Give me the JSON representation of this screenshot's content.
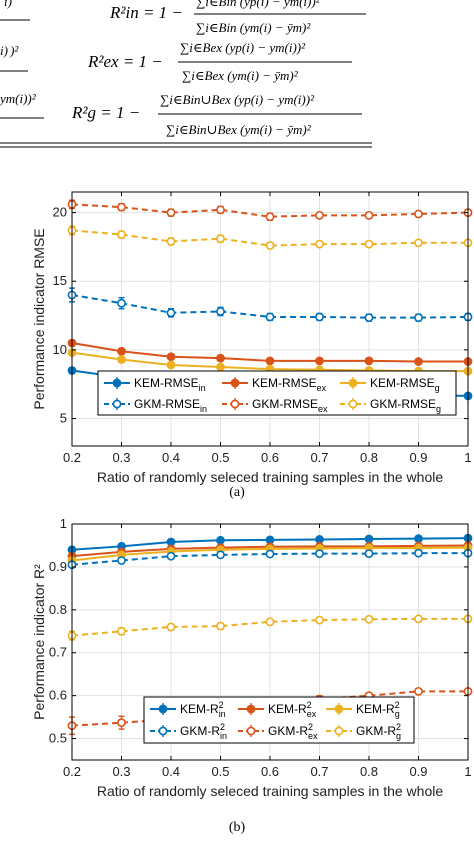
{
  "equations": {
    "r2_in_lhs": "R²in = 1 −",
    "r2_in_num": "∑i∈Bin (yp(i) − ym(i))²",
    "r2_in_den": "∑i∈Bin (ym(i) − ȳm)²",
    "r2_ex_lhs": "R²ex = 1 −",
    "r2_ex_num": "∑i∈Bex (yp(i) − ym(i))²",
    "r2_ex_den": "∑i∈Bex (ym(i) − ȳm)²",
    "r2_g_lhs": "R²g = 1 −",
    "r2_g_num": "∑i∈Bin∪Bex (yp(i) − ym(i))²",
    "r2_g_den": "∑i∈Bin∪Bex (ym(i) − ȳm)²",
    "left_fragments": [
      "i)",
      "i) )²",
      "ym(i))²"
    ]
  },
  "captions": {
    "a": "(a)",
    "b": "(b)"
  },
  "chart_data": [
    {
      "type": "line",
      "xlabel": "Ratio of randomly seleced training samples in the whole",
      "ylabel": "Performance indicator RMSE",
      "xlim": [
        0.2,
        1
      ],
      "ylim": [
        3,
        21.5
      ],
      "xticks": [
        0.2,
        0.3,
        0.4,
        0.5,
        0.6,
        0.7,
        0.8,
        0.9,
        1
      ],
      "xtick_labels": [
        "0.2",
        "0.3",
        "0.4",
        "0.5",
        "0.6",
        "0.7",
        "0.8",
        "0.9",
        "1"
      ],
      "yticks": [
        5,
        10,
        15,
        20
      ],
      "ytick_labels": [
        "5",
        "10",
        "15",
        "20"
      ],
      "grid": true,
      "legend_placement": "bottom, inside, two rows",
      "x": [
        0.2,
        0.3,
        0.4,
        0.5,
        0.6,
        0.7,
        0.8,
        0.9,
        1.0
      ],
      "series": [
        {
          "name": "KEM-RMSE",
          "sub": "in",
          "sup": "",
          "color": "#0072BD",
          "style": "solid",
          "marker": "filled",
          "values": [
            8.5,
            8.0,
            7.4,
            7.1,
            6.9,
            6.85,
            6.75,
            6.7,
            6.65
          ],
          "err": [
            0.2,
            0.2,
            0.15,
            0.15,
            0.15,
            0.15,
            0.15,
            0.15,
            0.15
          ]
        },
        {
          "name": "KEM-RMSE",
          "sub": "ex",
          "sup": "",
          "color": "#D95319",
          "style": "solid",
          "marker": "filled",
          "values": [
            10.5,
            9.9,
            9.5,
            9.4,
            9.2,
            9.2,
            9.2,
            9.15,
            9.15
          ],
          "err": [
            0.2,
            0.2,
            0.15,
            0.15,
            0.15,
            0.15,
            0.15,
            0.15,
            0.15
          ]
        },
        {
          "name": "KEM-RMSE",
          "sub": "g",
          "sup": "",
          "color": "#EDB120",
          "style": "solid",
          "marker": "filled",
          "values": [
            9.8,
            9.3,
            8.9,
            8.75,
            8.6,
            8.55,
            8.5,
            8.45,
            8.45
          ],
          "err": [
            0.2,
            0.2,
            0.15,
            0.15,
            0.15,
            0.15,
            0.15,
            0.15,
            0.15
          ]
        },
        {
          "name": "GKM-RMSE",
          "sub": "in",
          "sup": "",
          "color": "#0072BD",
          "style": "dashed",
          "marker": "open",
          "values": [
            14.0,
            13.4,
            12.7,
            12.8,
            12.4,
            12.4,
            12.35,
            12.35,
            12.4
          ],
          "err": [
            0.5,
            0.4,
            0.3,
            0.3,
            0.25,
            0.25,
            0.25,
            0.25,
            0.25
          ]
        },
        {
          "name": "GKM-RMSE",
          "sub": "ex",
          "sup": "",
          "color": "#D95319",
          "style": "dashed",
          "marker": "open",
          "values": [
            20.6,
            20.4,
            20.0,
            20.2,
            19.7,
            19.8,
            19.8,
            19.9,
            20.0
          ],
          "err": [
            0.3,
            0.25,
            0.25,
            0.25,
            0.25,
            0.2,
            0.2,
            0.2,
            0.2
          ]
        },
        {
          "name": "GKM-RMSE",
          "sub": "g",
          "sup": "",
          "color": "#EDB120",
          "style": "dashed",
          "marker": "open",
          "values": [
            18.7,
            18.4,
            17.9,
            18.1,
            17.6,
            17.7,
            17.7,
            17.8,
            17.8
          ],
          "err": [
            0.3,
            0.25,
            0.25,
            0.25,
            0.2,
            0.2,
            0.2,
            0.2,
            0.2
          ]
        }
      ]
    },
    {
      "type": "line",
      "xlabel": "Ratio of randomly seleced training samples in the whole",
      "ylabel": "Performance indicator R²",
      "xlim": [
        0.2,
        1
      ],
      "ylim": [
        0.45,
        1.0
      ],
      "xticks": [
        0.2,
        0.3,
        0.4,
        0.5,
        0.6,
        0.7,
        0.8,
        0.9,
        1
      ],
      "xtick_labels": [
        "0.2",
        "0.3",
        "0.4",
        "0.5",
        "0.6",
        "0.7",
        "0.8",
        "0.9",
        "1"
      ],
      "yticks": [
        0.5,
        0.6,
        0.7,
        0.8,
        0.9,
        1
      ],
      "ytick_labels": [
        "0.5",
        "0.6",
        "0.7",
        "0.8",
        "0.9",
        "1"
      ],
      "grid": true,
      "legend_placement": "bottom, inside, two rows",
      "x": [
        0.2,
        0.3,
        0.4,
        0.5,
        0.6,
        0.7,
        0.8,
        0.9,
        1.0
      ],
      "series": [
        {
          "name": "KEM-R",
          "sub": "in",
          "sup": "2",
          "color": "#0072BD",
          "style": "solid",
          "marker": "filled",
          "values": [
            0.94,
            0.948,
            0.958,
            0.962,
            0.963,
            0.964,
            0.965,
            0.966,
            0.967
          ],
          "err": [
            0.004,
            0.004,
            0.003,
            0.003,
            0.003,
            0.003,
            0.003,
            0.003,
            0.003
          ]
        },
        {
          "name": "KEM-R",
          "sub": "ex",
          "sup": "2",
          "color": "#D95319",
          "style": "solid",
          "marker": "filled",
          "values": [
            0.925,
            0.935,
            0.942,
            0.945,
            0.947,
            0.948,
            0.948,
            0.949,
            0.95
          ],
          "err": [
            0.004,
            0.004,
            0.003,
            0.003,
            0.003,
            0.003,
            0.003,
            0.003,
            0.003
          ]
        },
        {
          "name": "KEM-R",
          "sub": "g",
          "sup": "2",
          "color": "#EDB120",
          "style": "solid",
          "marker": "filled",
          "values": [
            0.915,
            0.928,
            0.936,
            0.94,
            0.942,
            0.943,
            0.944,
            0.944,
            0.945
          ],
          "err": [
            0.004,
            0.004,
            0.003,
            0.003,
            0.003,
            0.003,
            0.003,
            0.003,
            0.003
          ]
        },
        {
          "name": "GKM-R",
          "sub": "in",
          "sup": "2",
          "color": "#0072BD",
          "style": "dashed",
          "marker": "open",
          "values": [
            0.905,
            0.915,
            0.925,
            0.928,
            0.93,
            0.931,
            0.931,
            0.932,
            0.932
          ],
          "err": [
            0.005,
            0.004,
            0.004,
            0.004,
            0.003,
            0.003,
            0.003,
            0.003,
            0.003
          ]
        },
        {
          "name": "GKM-R",
          "sub": "ex",
          "sup": "2",
          "color": "#D95319",
          "style": "dashed",
          "marker": "open",
          "values": [
            0.53,
            0.537,
            0.545,
            0.547,
            0.58,
            0.592,
            0.6,
            0.61,
            0.61
          ],
          "err": [
            0.02,
            0.015,
            0.015,
            0.015,
            0.01,
            0.008,
            0.006,
            0.006,
            0.006
          ]
        },
        {
          "name": "GKM-R",
          "sub": "g",
          "sup": "2",
          "color": "#EDB120",
          "style": "dashed",
          "marker": "open",
          "values": [
            0.74,
            0.75,
            0.76,
            0.762,
            0.772,
            0.776,
            0.778,
            0.779,
            0.779
          ],
          "err": [
            0.01,
            0.008,
            0.007,
            0.007,
            0.005,
            0.005,
            0.004,
            0.004,
            0.004
          ]
        }
      ]
    }
  ]
}
